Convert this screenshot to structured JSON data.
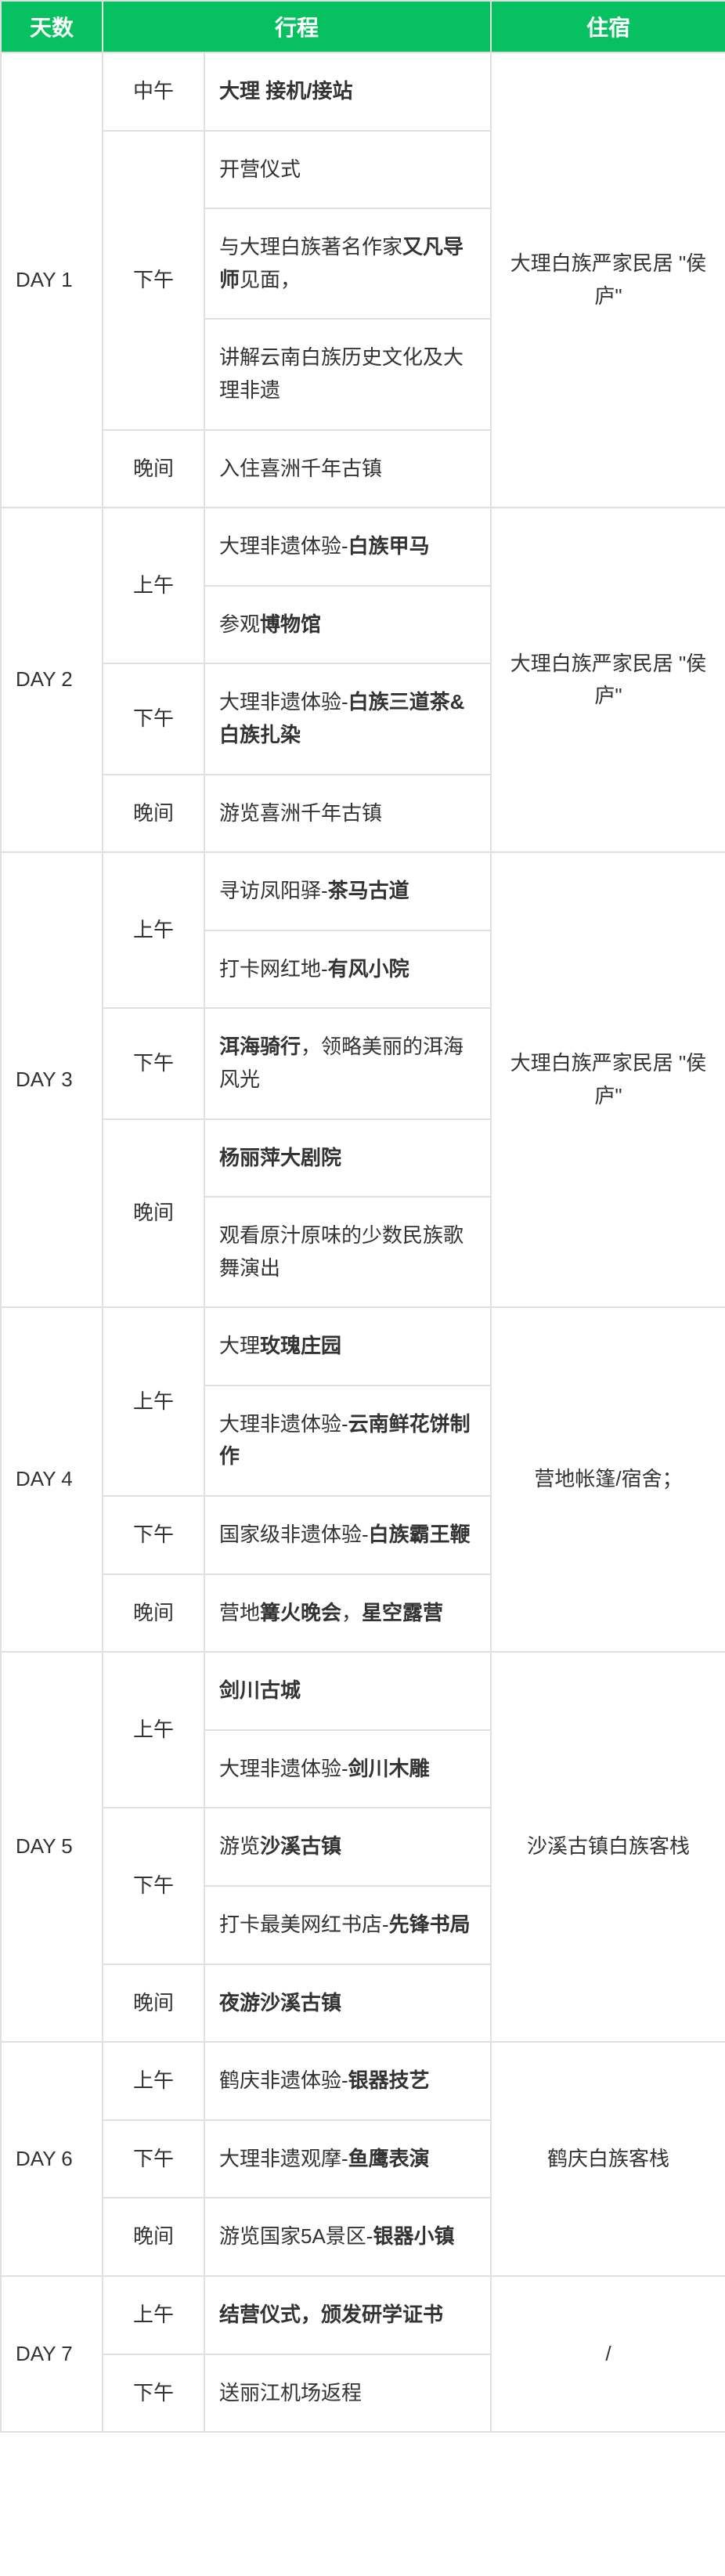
{
  "headers": {
    "days": "天数",
    "itinerary": "行程",
    "stay": "住宿"
  },
  "colors": {
    "header_bg": "#07c160",
    "header_text": "#ffffff",
    "border": "#e0e0e0",
    "text": "#333333",
    "bg": "#ffffff"
  },
  "rows": [
    {
      "day": "DAY 1",
      "period": "中午",
      "activity_html": "<span class='bold'>大理 接机/接站</span>",
      "stay": "大理白族严家民居 \"侯庐\""
    },
    {
      "period": "下午",
      "activity_html": "开营仪式"
    },
    {
      "activity_html": "与大理白族著名作家<span class='bold'>又凡导师</span>见面，"
    },
    {
      "activity_html": "讲解云南白族历史文化及大理非遗"
    },
    {
      "period": "晚间",
      "activity_html": "入住喜洲千年古镇"
    },
    {
      "day": "DAY 2",
      "period": "上午",
      "activity_html": "大理非遗体验-<span class='bold'>白族甲马</span>",
      "stay": "大理白族严家民居 \"侯庐\""
    },
    {
      "activity_html": "参观<span class='bold'>博物馆</span>"
    },
    {
      "period": "下午",
      "activity_html": "大理非遗体验-<span class='bold'>白族三道茶&白族扎染</span>"
    },
    {
      "period": "晚间",
      "activity_html": "游览喜洲千年古镇"
    },
    {
      "day": "DAY 3",
      "period": "上午",
      "activity_html": "寻访凤阳驿-<span class='bold'>茶马古道</span>",
      "stay": "大理白族严家民居 \"侯庐\""
    },
    {
      "activity_html": "打卡网红地-<span class='bold'>有风小院</span>"
    },
    {
      "period": "下午",
      "activity_html": "<span class='bold'>洱海骑行</span>，领略美丽的洱海风光"
    },
    {
      "period": "晚间",
      "activity_html": "<span class='bold'>杨丽萍大剧院</span>"
    },
    {
      "activity_html": "观看原汁原味的少数民族歌舞演出"
    },
    {
      "day": "DAY 4",
      "period": "上午",
      "activity_html": "大理<span class='bold'>玫瑰庄园</span>",
      "stay": "营地帐篷/宿舍；"
    },
    {
      "activity_html": "大理非遗体验-<span class='bold'>云南鲜花饼制作</span>"
    },
    {
      "period": "下午",
      "activity_html": "国家级非遗体验-<span class='bold'>白族霸王鞭</span>"
    },
    {
      "period": "晚间",
      "activity_html": "营地<span class='bold'>篝火晚会</span>，<span class='bold'>星空露营</span>"
    },
    {
      "day": "DAY 5",
      "period": "上午",
      "activity_html": "<span class='bold'>剑川古城</span>",
      "stay": "沙溪古镇白族客栈"
    },
    {
      "activity_html": "大理非遗体验-<span class='bold'>剑川木雕</span>"
    },
    {
      "period": "下午",
      "activity_html": "游览<span class='bold'>沙溪古镇</span>"
    },
    {
      "activity_html": "打卡最美网红书店-<span class='bold'>先锋书局</span>"
    },
    {
      "period": "晚间",
      "activity_html": "<span class='bold'>夜游沙溪古镇</span>"
    },
    {
      "day": "DAY 6",
      "period": "上午",
      "activity_html": "鹤庆非遗体验-<span class='bold'>银器技艺</span>",
      "stay": "鹤庆白族客栈"
    },
    {
      "period": "下午",
      "activity_html": "大理非遗观摩-<span class='bold'>鱼鹰表演</span>"
    },
    {
      "period": "晚间",
      "activity_html": "游览国家5A景区-<span class='bold'>银器小镇</span>"
    },
    {
      "day": "DAY 7",
      "period": "上午",
      "activity_html": "<span class='bold'>结营仪式，颁发研学证书</span>",
      "stay": "/"
    },
    {
      "period": "下午",
      "activity_html": "送丽江机场返程"
    }
  ],
  "day_spans": {
    "DAY 1": 5,
    "DAY 2": 4,
    "DAY 3": 5,
    "DAY 4": 4,
    "DAY 5": 5,
    "DAY 6": 3,
    "DAY 7": 2
  },
  "period_spans": [
    1,
    3,
    null,
    null,
    1,
    2,
    null,
    1,
    1,
    2,
    null,
    1,
    2,
    null,
    2,
    null,
    1,
    1,
    2,
    null,
    2,
    null,
    1,
    1,
    1,
    1,
    1,
    1
  ]
}
